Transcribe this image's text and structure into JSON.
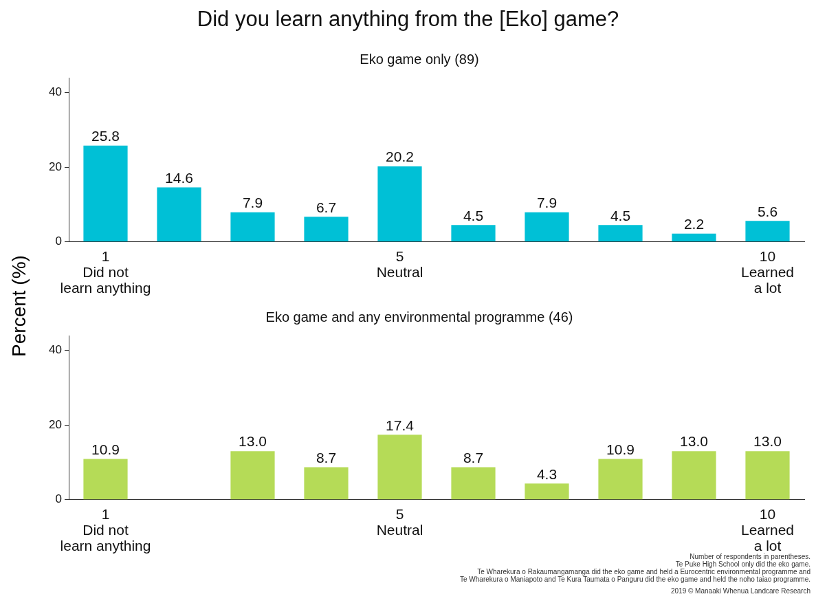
{
  "chart_data": [
    {
      "type": "bar",
      "title": "Did you learn anything from the [Eko] game?",
      "subtitle": "Eko game only (89)",
      "ylabel": "Percent (%)",
      "categories": [
        "1\nDid not\nlearn anything",
        null,
        null,
        null,
        "5\nNeutral",
        null,
        null,
        null,
        null,
        "10\nLearned\na lot"
      ],
      "values": [
        25.8,
        14.6,
        7.9,
        6.7,
        20.2,
        4.5,
        7.9,
        4.5,
        2.2,
        5.6
      ],
      "value_labels": [
        "25.8",
        "14.6",
        "7.9",
        "6.7",
        "20.2",
        "4.5",
        "7.9",
        "4.5",
        "2.2",
        "5.6"
      ],
      "color": "#00c0d6",
      "ylim": [
        0,
        44
      ],
      "yticks": [
        0,
        20,
        40
      ],
      "grid": false,
      "legend": false
    },
    {
      "type": "bar",
      "title": "Eko game and any environmental programme (46)",
      "categories": [
        "1\nDid not\nlearn anything",
        null,
        null,
        null,
        "5\nNeutral",
        null,
        null,
        null,
        null,
        "10\nLearned\na lot"
      ],
      "values": [
        10.9,
        null,
        13.0,
        8.7,
        17.4,
        8.7,
        4.3,
        10.9,
        13.0,
        13.0
      ],
      "value_labels": [
        "10.9",
        null,
        "13.0",
        "8.7",
        "17.4",
        "8.7",
        "4.3",
        "10.9",
        "13.0",
        "13.0"
      ],
      "color": "#b5db57",
      "ylim": [
        0,
        44
      ],
      "yticks": [
        0,
        20,
        40
      ],
      "grid": false,
      "legend": false,
      "annotations": [
        "Number of respondents in parentheses.",
        "Te Puke High School only did the eko game.",
        "Te Wharekura o Rakaumangamanga did the eko game and held a Eurocentric environmental programme and",
        "Te Wharekura o Maniapoto and Te Kura Taumata o Panguru did the eko game and held the noho taiao programme.",
        "2019 © Manaaki Whenua Landcare Research"
      ]
    }
  ]
}
